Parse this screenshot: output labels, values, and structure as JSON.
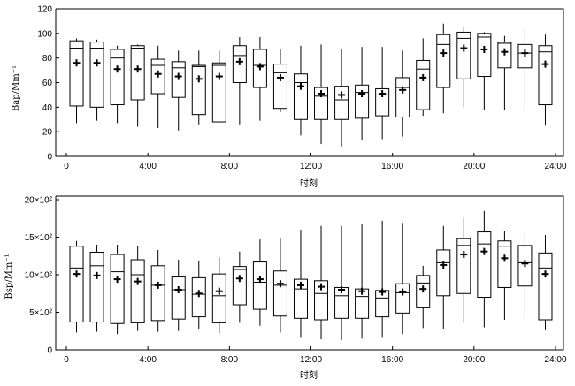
{
  "chart_data": [
    {
      "type": "boxplot",
      "id": "bap",
      "title": "",
      "xlabel": "时刻",
      "ylabel": "Bap/Mm⁻¹",
      "xlim": [
        -0.5,
        24
      ],
      "ylim": [
        0,
        120
      ],
      "yticks": [
        0,
        20,
        40,
        60,
        80,
        100,
        120
      ],
      "ytick_labels": [
        "0",
        "20",
        "40",
        "60",
        "80",
        "100",
        "120"
      ],
      "xticks": [
        0,
        4,
        8,
        12,
        16,
        20,
        24
      ],
      "xtick_labels": [
        "0",
        "4:00",
        "8:00",
        "12:00",
        "16:00",
        "20:00",
        "24:00"
      ],
      "mean_marker": "+",
      "boxes": [
        {
          "x": 0.5,
          "low": 27,
          "q1": 41,
          "median": 88,
          "q3": 94,
          "high": 96,
          "mean": 76
        },
        {
          "x": 1.5,
          "low": 29,
          "q1": 40,
          "median": 88,
          "q3": 93,
          "high": 95,
          "mean": 76
        },
        {
          "x": 2.5,
          "low": 27,
          "q1": 42,
          "median": 80,
          "q3": 87,
          "high": 90,
          "mean": 71
        },
        {
          "x": 3.5,
          "low": 24,
          "q1": 46,
          "median": 88,
          "q3": 90,
          "high": 91,
          "mean": 71
        },
        {
          "x": 4.5,
          "low": 23,
          "q1": 51,
          "median": 74,
          "q3": 79,
          "high": 90,
          "mean": 67
        },
        {
          "x": 5.5,
          "low": 21,
          "q1": 48,
          "median": 72,
          "q3": 77,
          "high": 86,
          "mean": 65
        },
        {
          "x": 6.5,
          "low": 26,
          "q1": 34,
          "median": 73,
          "q3": 74,
          "high": 86,
          "mean": 63
        },
        {
          "x": 7.5,
          "low": 28,
          "q1": 28,
          "median": 74,
          "q3": 76,
          "high": 86,
          "mean": 65
        },
        {
          "x": 8.5,
          "low": 26,
          "q1": 60,
          "median": 82,
          "q3": 90,
          "high": 97,
          "mean": 77
        },
        {
          "x": 9.5,
          "low": 29,
          "q1": 56,
          "median": 74,
          "q3": 87,
          "high": 97,
          "mean": 73
        },
        {
          "x": 10.5,
          "low": 36,
          "q1": 39,
          "median": 68,
          "q3": 75,
          "high": 87,
          "mean": 64
        },
        {
          "x": 11.5,
          "low": 17,
          "q1": 30,
          "median": 60,
          "q3": 67,
          "high": 90,
          "mean": 57
        },
        {
          "x": 12.5,
          "low": 10,
          "q1": 30,
          "median": 49,
          "q3": 56,
          "high": 91,
          "mean": 51
        },
        {
          "x": 13.5,
          "low": 8,
          "q1": 30,
          "median": 46,
          "q3": 57,
          "high": 87,
          "mean": 50
        },
        {
          "x": 14.5,
          "low": 13,
          "q1": 31,
          "median": 52,
          "q3": 58,
          "high": 89,
          "mean": 51
        },
        {
          "x": 15.5,
          "low": 14,
          "q1": 33,
          "median": 50,
          "q3": 55,
          "high": 89,
          "mean": 51
        },
        {
          "x": 16.5,
          "low": 16,
          "q1": 32,
          "median": 56,
          "q3": 64,
          "high": 86,
          "mean": 54
        },
        {
          "x": 17.5,
          "low": 33,
          "q1": 38,
          "median": 71,
          "q3": 78,
          "high": 96,
          "mean": 64
        },
        {
          "x": 18.5,
          "low": 35,
          "q1": 56,
          "median": 91,
          "q3": 99,
          "high": 108,
          "mean": 84
        },
        {
          "x": 19.5,
          "low": 40,
          "q1": 63,
          "median": 96,
          "q3": 101,
          "high": 105,
          "mean": 88
        },
        {
          "x": 20.5,
          "low": 38,
          "q1": 65,
          "median": 97,
          "q3": 100,
          "high": 101,
          "mean": 87
        },
        {
          "x": 21.5,
          "low": 38,
          "q1": 72,
          "median": 92,
          "q3": 93,
          "high": 98,
          "mean": 85
        },
        {
          "x": 22.5,
          "low": 39,
          "q1": 72,
          "median": 84,
          "q3": 91,
          "high": 104,
          "mean": 84
        },
        {
          "x": 23.5,
          "low": 25,
          "q1": 42,
          "median": 85,
          "q3": 90,
          "high": 99,
          "mean": 75
        }
      ]
    },
    {
      "type": "boxplot",
      "id": "bsp",
      "title": "",
      "xlabel": "时刻",
      "ylabel": "Bsp/Mm⁻¹",
      "xlim": [
        -0.5,
        24
      ],
      "ylim": [
        0,
        2000
      ],
      "yticks": [
        0,
        500,
        1000,
        1500,
        2000
      ],
      "ytick_labels": [
        "0",
        "5×10²",
        "10×10²",
        "15×10²",
        "20×10²"
      ],
      "xticks": [
        0,
        4,
        8,
        12,
        16,
        20,
        24
      ],
      "xtick_labels": [
        "0",
        "4:00",
        "8:00",
        "12:00",
        "16:00",
        "20:00",
        "24:00"
      ],
      "mean_marker": "+",
      "boxes": [
        {
          "x": 0.5,
          "low": 230,
          "q1": 370,
          "median": 1090,
          "q3": 1380,
          "high": 1450,
          "mean": 1010
        },
        {
          "x": 1.5,
          "low": 240,
          "q1": 370,
          "median": 1120,
          "q3": 1300,
          "high": 1400,
          "mean": 990
        },
        {
          "x": 2.5,
          "low": 210,
          "q1": 350,
          "median": 1040,
          "q3": 1270,
          "high": 1400,
          "mean": 940
        },
        {
          "x": 3.5,
          "low": 250,
          "q1": 360,
          "median": 1000,
          "q3": 1200,
          "high": 1380,
          "mean": 910
        },
        {
          "x": 4.5,
          "low": 240,
          "q1": 390,
          "median": 860,
          "q3": 1120,
          "high": 1330,
          "mean": 860
        },
        {
          "x": 5.5,
          "low": 250,
          "q1": 410,
          "median": 800,
          "q3": 970,
          "high": 1200,
          "mean": 800
        },
        {
          "x": 6.5,
          "low": 270,
          "q1": 440,
          "median": 740,
          "q3": 960,
          "high": 1190,
          "mean": 750
        },
        {
          "x": 7.5,
          "low": 220,
          "q1": 360,
          "median": 720,
          "q3": 1010,
          "high": 1230,
          "mean": 780
        },
        {
          "x": 8.5,
          "low": 360,
          "q1": 600,
          "median": 1070,
          "q3": 1110,
          "high": 1310,
          "mean": 950
        },
        {
          "x": 9.5,
          "low": 320,
          "q1": 540,
          "median": 900,
          "q3": 1170,
          "high": 1470,
          "mean": 940
        },
        {
          "x": 10.5,
          "low": 230,
          "q1": 450,
          "median": 860,
          "q3": 1050,
          "high": 1480,
          "mean": 880
        },
        {
          "x": 11.5,
          "low": 160,
          "q1": 420,
          "median": 810,
          "q3": 940,
          "high": 1600,
          "mean": 860
        },
        {
          "x": 12.5,
          "low": 140,
          "q1": 400,
          "median": 750,
          "q3": 920,
          "high": 1650,
          "mean": 840
        },
        {
          "x": 13.5,
          "low": 130,
          "q1": 420,
          "median": 720,
          "q3": 830,
          "high": 1650,
          "mean": 800
        },
        {
          "x": 14.5,
          "low": 150,
          "q1": 420,
          "median": 710,
          "q3": 810,
          "high": 1670,
          "mean": 780
        },
        {
          "x": 15.5,
          "low": 160,
          "q1": 440,
          "median": 690,
          "q3": 790,
          "high": 1720,
          "mean": 770
        },
        {
          "x": 16.5,
          "low": 210,
          "q1": 490,
          "median": 760,
          "q3": 880,
          "high": 1680,
          "mean": 770
        },
        {
          "x": 17.5,
          "low": 290,
          "q1": 560,
          "median": 890,
          "q3": 990,
          "high": 1120,
          "mean": 810
        },
        {
          "x": 18.5,
          "low": 280,
          "q1": 720,
          "median": 1160,
          "q3": 1330,
          "high": 1650,
          "mean": 1130
        },
        {
          "x": 19.5,
          "low": 360,
          "q1": 750,
          "median": 1390,
          "q3": 1480,
          "high": 1760,
          "mean": 1270
        },
        {
          "x": 20.5,
          "low": 300,
          "q1": 700,
          "median": 1410,
          "q3": 1570,
          "high": 1850,
          "mean": 1310
        },
        {
          "x": 21.5,
          "low": 400,
          "q1": 830,
          "median": 1380,
          "q3": 1450,
          "high": 1580,
          "mean": 1220
        },
        {
          "x": 22.5,
          "low": 430,
          "q1": 850,
          "median": 1160,
          "q3": 1390,
          "high": 1550,
          "mean": 1150
        },
        {
          "x": 23.5,
          "low": 260,
          "q1": 400,
          "median": 1090,
          "q3": 1290,
          "high": 1530,
          "mean": 1010
        }
      ]
    }
  ]
}
